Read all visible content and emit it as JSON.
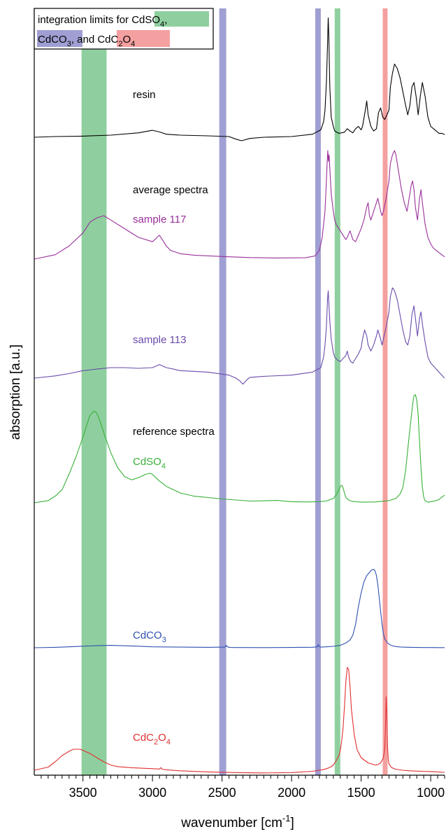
{
  "chart_data": {
    "type": "line",
    "xlabel_main": "wavenumber [cm",
    "xlabel_sup": "-1",
    "xlabel_end": "]",
    "ylabel": "absorption [a.u.]",
    "xlim": [
      3850,
      900
    ],
    "x_reversed": true,
    "ticks": [
      "3500",
      "3000",
      "2500",
      "2000",
      "1500",
      "1000"
    ],
    "tick_values": [
      3500,
      3000,
      2500,
      2000,
      1500,
      1000
    ],
    "legend": {
      "line1_prefix": "integration limits for ",
      "cdso4_base": "CdSO",
      "cdso4_sub": "4",
      "comma": ",",
      "cdco3_base": "CdCO",
      "cdco3_sub": "3",
      "and": ", and ",
      "cdc2o4_a": "CdC",
      "cdc2o4_sub1": "2",
      "cdc2o4_b": "O",
      "cdc2o4_sub2": "4"
    },
    "bands": [
      {
        "species": "CdSO4",
        "from": 3510,
        "to": 3330,
        "color": "#8fcf9f"
      },
      {
        "species": "CdSO4",
        "from": 1690,
        "to": 1650,
        "color": "#8fcf9f"
      },
      {
        "species": "CdCO3",
        "from": 2520,
        "to": 2470,
        "color": "#9f9fd3"
      },
      {
        "species": "CdCO3",
        "from": 1830,
        "to": 1790,
        "color": "#9f9fd3"
      },
      {
        "species": "CdC2O4",
        "from": 1345,
        "to": 1310,
        "color": "#f4a0a0"
      }
    ],
    "section_labels": {
      "average": "average spectra",
      "reference": "reference spectra"
    },
    "series": [
      {
        "name": "resin",
        "label_base": "resin",
        "label_sub": "",
        "label_end": "",
        "color": "#000000",
        "label_x": 3200,
        "label_y": 10,
        "x": [
          3850,
          3700,
          3500,
          3300,
          3100,
          3000,
          2950,
          2900,
          2800,
          2600,
          2450,
          2400,
          2360,
          2300,
          2200,
          2000,
          1850,
          1790,
          1770,
          1760,
          1750,
          1742,
          1737,
          1732,
          1725,
          1715,
          1700,
          1690,
          1660,
          1620,
          1600,
          1580,
          1560,
          1540,
          1520,
          1500,
          1490,
          1470,
          1460,
          1450,
          1430,
          1410,
          1390,
          1375,
          1360,
          1345,
          1330,
          1315,
          1300,
          1290,
          1275,
          1260,
          1240,
          1220,
          1200,
          1180,
          1165,
          1150,
          1135,
          1120,
          1105,
          1090,
          1075,
          1060,
          1040,
          1020,
          1000,
          980,
          960,
          940,
          920,
          900
        ],
        "y": [
          0.3,
          0.6,
          0.8,
          1.2,
          2.2,
          3.3,
          2.6,
          1.6,
          1.2,
          0.9,
          0.6,
          -0.5,
          -1.2,
          -0.2,
          0.3,
          0.6,
          1.6,
          3.5,
          7,
          12,
          24,
          40,
          52,
          44,
          22,
          9,
          5,
          3,
          2,
          2.5,
          4,
          3,
          2.2,
          4,
          5,
          3.5,
          5,
          12,
          16,
          10,
          5,
          3,
          4,
          11,
          13,
          9,
          8,
          10,
          12,
          22,
          28,
          32,
          30,
          26,
          20,
          14,
          10,
          14,
          22,
          24,
          18,
          10,
          18,
          24,
          18,
          9,
          5,
          4,
          3,
          2,
          2,
          1.5
        ]
      },
      {
        "name": "sample 117",
        "label_base": "sample 117",
        "label_sub": "",
        "label_end": "",
        "color": "#9a309a",
        "label_x": 3200,
        "label_y": 24,
        "x": [
          3850,
          3700,
          3600,
          3500,
          3450,
          3400,
          3350,
          3300,
          3200,
          3100,
          3000,
          2950,
          2920,
          2900,
          2870,
          2800,
          2700,
          2500,
          2300,
          2100,
          1900,
          1830,
          1800,
          1780,
          1760,
          1750,
          1745,
          1740,
          1735,
          1730,
          1725,
          1715,
          1700,
          1690,
          1680,
          1660,
          1630,
          1610,
          1600,
          1580,
          1560,
          1540,
          1520,
          1500,
          1480,
          1460,
          1450,
          1440,
          1430,
          1410,
          1390,
          1380,
          1360,
          1350,
          1340,
          1320,
          1300,
          1290,
          1275,
          1260,
          1250,
          1230,
          1210,
          1190,
          1170,
          1155,
          1140,
          1130,
          1120,
          1110,
          1095,
          1080,
          1070,
          1060,
          1040,
          1020,
          1000,
          980,
          960,
          940,
          920,
          900
        ],
        "y": [
          0,
          2,
          6,
          12,
          17,
          19,
          20,
          18,
          14,
          10,
          8,
          11,
          8,
          6,
          4,
          2.5,
          1.8,
          1.2,
          0.7,
          0.5,
          0.6,
          1.5,
          4,
          10,
          22,
          36,
          44,
          50,
          45,
          48,
          42,
          30,
          22,
          18,
          16,
          14,
          11,
          9,
          10,
          13,
          9,
          8,
          11,
          14,
          18,
          24,
          26,
          20,
          18,
          22,
          26,
          28,
          22,
          20,
          22,
          28,
          36,
          44,
          48,
          50,
          48,
          40,
          32,
          26,
          22,
          28,
          34,
          36,
          32,
          24,
          18,
          28,
          32,
          26,
          16,
          10,
          7,
          5,
          4,
          3,
          2,
          1
        ]
      },
      {
        "name": "sample 113",
        "label_base": "sample 113",
        "label_sub": "",
        "label_end": "",
        "color": "#6a4bab",
        "label_x": 3200,
        "label_y": 21,
        "x": [
          3850,
          3700,
          3600,
          3500,
          3400,
          3300,
          3200,
          3100,
          3000,
          2950,
          2900,
          2850,
          2800,
          2600,
          2450,
          2400,
          2370,
          2350,
          2320,
          2300,
          2200,
          2000,
          1850,
          1790,
          1770,
          1760,
          1750,
          1742,
          1737,
          1732,
          1725,
          1715,
          1700,
          1690,
          1670,
          1650,
          1630,
          1610,
          1600,
          1590,
          1575,
          1560,
          1540,
          1520,
          1500,
          1490,
          1475,
          1460,
          1450,
          1440,
          1430,
          1410,
          1390,
          1380,
          1360,
          1350,
          1340,
          1320,
          1300,
          1290,
          1275,
          1260,
          1240,
          1220,
          1200,
          1180,
          1165,
          1150,
          1135,
          1120,
          1110,
          1095,
          1080,
          1070,
          1060,
          1040,
          1020,
          1000,
          980,
          960,
          940,
          920,
          900
        ],
        "y": [
          0,
          1.5,
          3,
          5,
          6,
          7,
          7,
          6.5,
          7,
          9,
          7,
          6,
          5,
          4,
          2,
          0,
          -2,
          -4,
          -1,
          0.5,
          1.2,
          2,
          4,
          7,
          14,
          22,
          34,
          52,
          58,
          50,
          38,
          26,
          17,
          14,
          12,
          11,
          13,
          15,
          18,
          14,
          11,
          10,
          13,
          16,
          20,
          26,
          32,
          28,
          22,
          20,
          18,
          22,
          28,
          32,
          26,
          22,
          26,
          34,
          44,
          54,
          60,
          58,
          52,
          42,
          32,
          24,
          22,
          28,
          42,
          48,
          40,
          28,
          40,
          44,
          36,
          24,
          14,
          10,
          8,
          6,
          4,
          2,
          0
        ]
      },
      {
        "name": "CdSO4",
        "label_base": "CdSO",
        "label_sub": "4",
        "label_end": "",
        "color": "#38b038",
        "label_x": 3200,
        "label_y": 27,
        "x": [
          3850,
          3750,
          3700,
          3650,
          3600,
          3550,
          3500,
          3470,
          3450,
          3420,
          3400,
          3380,
          3350,
          3300,
          3250,
          3200,
          3150,
          3100,
          3050,
          3020,
          3000,
          2960,
          2900,
          2800,
          2700,
          2500,
          2300,
          2200,
          2100,
          2050,
          2000,
          1900,
          1800,
          1750,
          1700,
          1680,
          1660,
          1650,
          1640,
          1630,
          1620,
          1610,
          1590,
          1560,
          1500,
          1400,
          1300,
          1250,
          1220,
          1200,
          1180,
          1160,
          1140,
          1130,
          1120,
          1110,
          1100,
          1090,
          1080,
          1070,
          1060,
          1050,
          1040,
          1030,
          1020,
          1000,
          980,
          960,
          940,
          920,
          900
        ],
        "y": [
          0,
          2,
          6,
          12,
          26,
          42,
          60,
          72,
          80,
          84,
          82,
          76,
          64,
          46,
          32,
          24,
          21,
          23,
          26,
          27,
          26,
          21,
          15,
          9,
          6,
          3.5,
          1.6,
          1.8,
          2.2,
          1.5,
          1,
          0.8,
          1,
          1.6,
          4,
          7,
          12,
          15,
          16,
          14,
          9,
          5,
          2.5,
          1.2,
          0.6,
          0.8,
          2,
          4,
          8,
          14,
          30,
          55,
          78,
          90,
          98,
          99,
          94,
          80,
          55,
          32,
          14,
          5,
          2,
          1,
          0.5,
          1,
          1.5,
          2,
          3,
          5,
          7
        ]
      },
      {
        "name": "CdCO3",
        "label_base": "CdCO",
        "label_sub": "3",
        "label_end": "",
        "color": "#3050b0",
        "label_x": 3200,
        "label_y": 7,
        "x": [
          3850,
          3700,
          3600,
          3500,
          3400,
          3300,
          3100,
          3000,
          2800,
          2600,
          2480,
          2470,
          2460,
          2440,
          2400,
          2200,
          2000,
          1850,
          1815,
          1808,
          1800,
          1790,
          1750,
          1700,
          1650,
          1610,
          1580,
          1560,
          1540,
          1520,
          1500,
          1480,
          1460,
          1440,
          1425,
          1410,
          1400,
          1390,
          1380,
          1370,
          1360,
          1350,
          1340,
          1330,
          1310,
          1290,
          1270,
          1250,
          1220,
          1200,
          1150,
          1100,
          1050,
          1000,
          950,
          900
        ],
        "y": [
          0,
          0.5,
          1.2,
          2,
          2.6,
          3,
          2,
          1.2,
          0.8,
          0.5,
          0.8,
          3,
          1,
          0.4,
          0.3,
          0.2,
          0.4,
          0.6,
          1.2,
          4,
          1.4,
          0.8,
          1.2,
          1.8,
          3,
          6,
          10,
          16,
          30,
          52,
          70,
          84,
          92,
          96,
          99,
          100,
          98,
          92,
          80,
          64,
          46,
          30,
          18,
          11,
          6,
          3.5,
          2.2,
          1.5,
          1,
          0.8,
          0.5,
          0.4,
          0.3,
          0.3,
          0.2,
          0.2
        ]
      },
      {
        "name": "CdC2O4",
        "label_base": "CdC",
        "label_sub": "2",
        "label_end": "O",
        "label_sub2": "4",
        "color": "#e03030",
        "label_x": 3200,
        "label_y": 12,
        "x": [
          3850,
          3750,
          3700,
          3650,
          3600,
          3570,
          3550,
          3520,
          3500,
          3450,
          3400,
          3350,
          3300,
          3250,
          3150,
          3050,
          2950,
          2940,
          2930,
          2900,
          2800,
          2600,
          2400,
          2200,
          2000,
          1850,
          1780,
          1750,
          1720,
          1700,
          1680,
          1660,
          1650,
          1640,
          1630,
          1620,
          1610,
          1600,
          1590,
          1580,
          1570,
          1550,
          1530,
          1500,
          1450,
          1400,
          1380,
          1360,
          1340,
          1330,
          1325,
          1320,
          1315,
          1310,
          1305,
          1300,
          1280,
          1250,
          1200,
          1150,
          1100,
          1050,
          1000,
          950,
          900
        ],
        "y": [
          0,
          3,
          8,
          14,
          18,
          20,
          20,
          20,
          19,
          16,
          12,
          8,
          5,
          3.5,
          2.5,
          1.8,
          1.2,
          2.5,
          1,
          0.5,
          -0.5,
          -1.5,
          -2.2,
          -2.5,
          -2.2,
          -1,
          0.5,
          1.5,
          3,
          5,
          9,
          14,
          19,
          28,
          40,
          60,
          84,
          98,
          96,
          80,
          58,
          34,
          20,
          12,
          7,
          5,
          5.5,
          7,
          12,
          20,
          40,
          70,
          52,
          22,
          10,
          6,
          2.5,
          1,
          0,
          -0.5,
          -0.8,
          -1,
          -1.2,
          -1.5,
          -2
        ]
      }
    ]
  }
}
